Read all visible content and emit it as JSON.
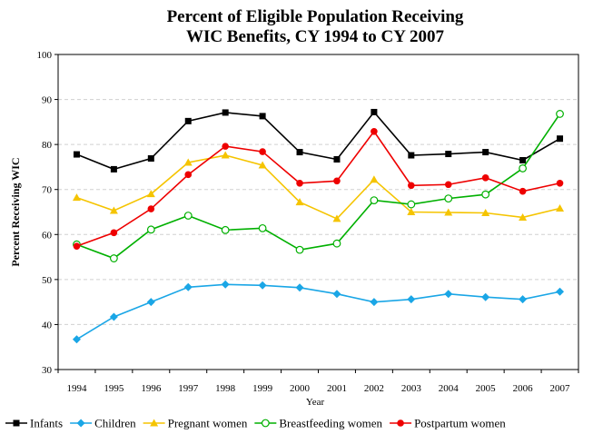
{
  "chart_data": {
    "type": "line",
    "title": [
      "Percent of Eligible Population Receiving",
      "WIC Benefits, CY 1994 to CY 2007"
    ],
    "xlabel": "Year",
    "ylabel": "Percent Receiving WIC",
    "categories": [
      "1994",
      "1995",
      "1996",
      "1997",
      "1998",
      "1999",
      "2000",
      "2001",
      "2002",
      "2003",
      "2004",
      "2005",
      "2006",
      "2007"
    ],
    "ylim": [
      30,
      100
    ],
    "yticks": [
      30,
      40,
      50,
      60,
      70,
      80,
      90,
      100
    ],
    "grid": true,
    "legend": "bottom",
    "series": [
      {
        "name": "Infants",
        "color": "#000000",
        "marker": "square",
        "values": [
          77.8,
          74.5,
          76.9,
          85.2,
          87.1,
          86.3,
          78.3,
          76.7,
          87.2,
          77.6,
          77.9,
          78.3,
          76.5,
          81.3
        ]
      },
      {
        "name": "Children",
        "color": "#1aa6e6",
        "marker": "diamond",
        "values": [
          36.7,
          41.7,
          45.0,
          48.3,
          48.9,
          48.7,
          48.2,
          46.8,
          45.0,
          45.6,
          46.8,
          46.1,
          45.6,
          47.3
        ]
      },
      {
        "name": "Pregnant women",
        "color": "#f5c400",
        "marker": "triangle",
        "values": [
          68.2,
          65.3,
          69.0,
          76.0,
          77.6,
          75.4,
          67.2,
          63.5,
          72.2,
          65.0,
          64.9,
          64.8,
          63.8,
          65.8
        ]
      },
      {
        "name": "Breastfeeding women",
        "color": "#00b000",
        "marker": "circle-open",
        "values": [
          57.8,
          54.7,
          61.1,
          64.2,
          61.0,
          61.4,
          56.6,
          58.0,
          67.6,
          66.7,
          68.0,
          68.9,
          74.7,
          86.8
        ]
      },
      {
        "name": "Postpartum women",
        "color": "#ee0000",
        "marker": "circle",
        "values": [
          57.4,
          60.4,
          65.7,
          73.3,
          79.6,
          78.4,
          71.4,
          71.9,
          82.9,
          70.9,
          71.1,
          72.6,
          69.6,
          71.4
        ]
      }
    ]
  }
}
